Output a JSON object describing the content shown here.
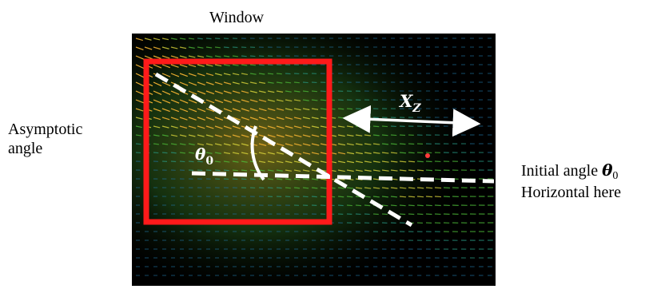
{
  "labels": {
    "window": "Window",
    "asymptotic_line1": "Asymptotic",
    "asymptotic_line2": "angle",
    "initial_angle_text": "Initial angle ",
    "initial_angle_symbol": "θ",
    "initial_angle_sub": "0",
    "horizontal": "Horizontal here",
    "theta_symbol": "θ",
    "theta_sub": "0",
    "xz_symbol": "X",
    "xz_sub": "Z"
  },
  "colors": {
    "background": "#000000",
    "window_box": "#ff1a1a",
    "dashed_lines": "#ffffff",
    "arrow_xz": "#ffffff",
    "arc": "#ffffff",
    "vector_warm": "#f4c542",
    "vector_cool": "#1f7fa6"
  }
}
